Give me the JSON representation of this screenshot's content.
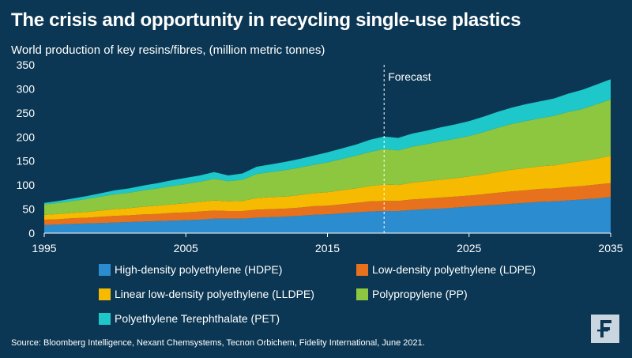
{
  "title": "The crisis and opportunity in recycling single-use plastics",
  "subtitle": "World production of key resins/fibres, (million metric tonnes)",
  "forecast_label": "Forecast",
  "source": "Source: Bloomberg Intelligence, Nexant Chemsystems, Tecnon Orbichem, Fidelity International, June 2021.",
  "logo_icon": "fidelity-f-logo-icon",
  "chart_data": {
    "type": "area",
    "stacked": true,
    "title": "The crisis and opportunity in recycling single-use plastics",
    "ylabel": "World production of key resins/fibres, (million metric tonnes)",
    "xlim": [
      1995,
      2035
    ],
    "ylim": [
      0,
      350
    ],
    "x_ticks": [
      1995,
      2005,
      2015,
      2025,
      2035
    ],
    "y_ticks": [
      0,
      50,
      100,
      150,
      200,
      250,
      300,
      350
    ],
    "forecast_start": 2019,
    "grid": false,
    "legend": "bottom",
    "x": [
      1995,
      1996,
      1997,
      1998,
      1999,
      2000,
      2001,
      2002,
      2003,
      2004,
      2005,
      2006,
      2007,
      2008,
      2009,
      2010,
      2011,
      2012,
      2013,
      2014,
      2015,
      2016,
      2017,
      2018,
      2019,
      2020,
      2021,
      2022,
      2023,
      2024,
      2025,
      2026,
      2027,
      2028,
      2029,
      2030,
      2031,
      2032,
      2033,
      2034,
      2035
    ],
    "series": [
      {
        "name": "High-density polyethylene (HDPE)",
        "color": "#2b8ccf",
        "values": [
          17,
          18,
          19,
          20,
          21,
          22,
          23,
          24,
          25,
          26,
          27,
          28,
          30,
          30,
          30,
          32,
          33,
          34,
          36,
          38,
          39,
          41,
          43,
          45,
          46,
          46,
          48,
          50,
          51,
          53,
          55,
          57,
          59,
          61,
          63,
          65,
          66,
          68,
          70,
          72,
          75
        ]
      },
      {
        "name": "Low-density polyethylene (LDPE)",
        "color": "#e8711d",
        "values": [
          11,
          11,
          12,
          12,
          13,
          14,
          14,
          15,
          15,
          16,
          16,
          17,
          17,
          16,
          16,
          17,
          17,
          17,
          17,
          18,
          18,
          19,
          20,
          21,
          21,
          21,
          22,
          22,
          23,
          23,
          23,
          24,
          25,
          26,
          26,
          27,
          27,
          28,
          28,
          29,
          29
        ]
      },
      {
        "name": "Linear low-density polyethylene (LLDPE)",
        "color": "#f6bb00",
        "values": [
          10,
          11,
          11,
          12,
          13,
          14,
          15,
          16,
          17,
          18,
          19,
          20,
          21,
          20,
          21,
          24,
          25,
          25,
          26,
          27,
          28,
          29,
          30,
          32,
          34,
          33,
          35,
          36,
          37,
          38,
          40,
          41,
          43,
          45,
          46,
          47,
          48,
          50,
          52,
          54,
          57
        ]
      },
      {
        "name": "Polypropylene (PP)",
        "color": "#8dc63f",
        "values": [
          22,
          23,
          25,
          27,
          29,
          31,
          32,
          34,
          36,
          38,
          40,
          42,
          45,
          42,
          44,
          50,
          52,
          55,
          57,
          59,
          62,
          65,
          68,
          71,
          74,
          72,
          75,
          77,
          80,
          82,
          84,
          88,
          92,
          95,
          98,
          100,
          103,
          106,
          108,
          113,
          117
        ]
      },
      {
        "name": "Polyethylene Terephthalate (PET)",
        "color": "#1ec7c9",
        "values": [
          3,
          4,
          5,
          6,
          7,
          8,
          9,
          10,
          11,
          12,
          13,
          13,
          14,
          12,
          13,
          15,
          16,
          17,
          18,
          19,
          21,
          22,
          23,
          25,
          26,
          26,
          27,
          28,
          29,
          30,
          31,
          32,
          33,
          34,
          35,
          35,
          36,
          38,
          40,
          41,
          42
        ]
      }
    ]
  }
}
